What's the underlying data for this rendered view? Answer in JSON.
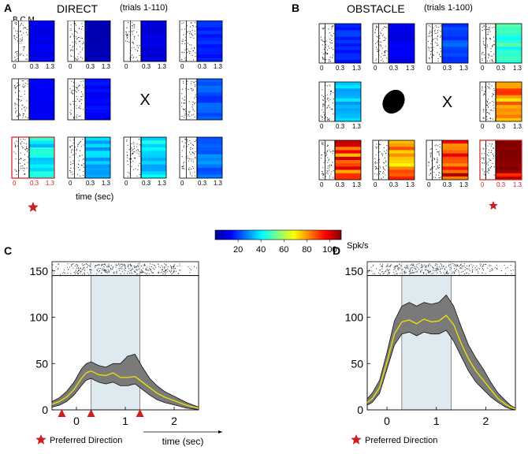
{
  "panel_a": {
    "letter": "A",
    "title": "DIRECT",
    "trials": "(trials 1-110)",
    "bcm": "B C M",
    "cells": [
      {
        "mean": 12,
        "missing": false,
        "preferred": false
      },
      {
        "mean": 6,
        "missing": false,
        "preferred": false
      },
      {
        "mean": 10,
        "missing": false,
        "preferred": false
      },
      {
        "mean": 18,
        "missing": false,
        "preferred": false
      },
      {
        "mean": 14,
        "missing": false,
        "preferred": false
      },
      {
        "mean": 14,
        "missing": false,
        "preferred": false
      },
      {
        "mean": 0,
        "missing": true,
        "preferred": false
      },
      {
        "mean": 22,
        "missing": false,
        "preferred": false
      },
      {
        "mean": 40,
        "missing": false,
        "preferred": true
      },
      {
        "mean": 35,
        "missing": false,
        "preferred": false
      },
      {
        "mean": 38,
        "missing": false,
        "preferred": false
      },
      {
        "mean": 26,
        "missing": false,
        "preferred": false
      }
    ],
    "tick_left": "0",
    "tick_mid": "0.3",
    "tick_right": "1.3",
    "missing_mark": "X",
    "xlabel": "time (sec)"
  },
  "panel_b": {
    "letter": "B",
    "title": "OBSTACLE",
    "trials": "(trials 1-100)",
    "cells": [
      {
        "mean": 18,
        "missing": false,
        "preferred": false
      },
      {
        "mean": 12,
        "missing": false,
        "preferred": false
      },
      {
        "mean": 22,
        "missing": false,
        "preferred": false
      },
      {
        "mean": 45,
        "missing": false,
        "preferred": false
      },
      {
        "mean": 34,
        "missing": false,
        "preferred": false
      },
      {
        "mean": 0,
        "missing": true,
        "obstacle": true,
        "preferred": false
      },
      {
        "mean": 0,
        "missing": true,
        "preferred": false
      },
      {
        "mean": 78,
        "missing": false,
        "preferred": false
      },
      {
        "mean": 88,
        "missing": false,
        "preferred": false
      },
      {
        "mean": 84,
        "missing": false,
        "preferred": false
      },
      {
        "mean": 90,
        "missing": false,
        "preferred": false
      },
      {
        "mean": 108,
        "missing": false,
        "preferred": true
      }
    ],
    "tick_left": "0",
    "tick_mid": "0.3",
    "tick_right": "1.3",
    "missing_mark": "X"
  },
  "colorbar": {
    "ticks": [
      "20",
      "40",
      "60",
      "80",
      "100"
    ],
    "tick_values": [
      20,
      40,
      60,
      80,
      100
    ],
    "range": [
      0,
      110
    ],
    "unit": "Spk/s"
  },
  "chart_data": [
    {
      "type": "line",
      "panel": "C",
      "xlabel": "time (sec)",
      "ylabel": "",
      "xlim": [
        -0.5,
        2.5
      ],
      "ylim": [
        0,
        160
      ],
      "xticks": [
        0,
        1,
        2
      ],
      "yticks": [
        0,
        50,
        100,
        150
      ],
      "shaded_window": [
        0.3,
        1.3
      ],
      "event_markers": [
        -0.3,
        0.3,
        1.3
      ],
      "series": [
        {
          "name": "mean",
          "x": [
            -0.5,
            -0.35,
            -0.2,
            -0.05,
            0.1,
            0.2,
            0.3,
            0.45,
            0.6,
            0.75,
            0.9,
            1.05,
            1.2,
            1.35,
            1.5,
            1.65,
            1.8,
            1.95,
            2.1,
            2.25,
            2.4,
            2.5
          ],
          "y": [
            6,
            9,
            14,
            22,
            34,
            40,
            42,
            38,
            37,
            40,
            35,
            35,
            36,
            30,
            24,
            18,
            14,
            11,
            8,
            5,
            3,
            2
          ],
          "upper": [
            9,
            13,
            20,
            30,
            44,
            50,
            52,
            48,
            46,
            50,
            50,
            58,
            60,
            46,
            34,
            26,
            20,
            16,
            12,
            8,
            5,
            3
          ],
          "lower": [
            3,
            5,
            9,
            16,
            26,
            32,
            34,
            30,
            28,
            30,
            26,
            26,
            28,
            22,
            16,
            11,
            8,
            6,
            4,
            2,
            1,
            0
          ]
        }
      ],
      "legend": "Preferred Direction"
    },
    {
      "type": "line",
      "panel": "D",
      "xlabel": "",
      "ylabel": "",
      "xlim": [
        -0.4,
        2.6
      ],
      "ylim": [
        0,
        160
      ],
      "xticks": [
        0,
        1,
        2
      ],
      "yticks": [
        0,
        50,
        100,
        150
      ],
      "shaded_window": [
        0.3,
        1.3
      ],
      "series": [
        {
          "name": "mean",
          "x": [
            -0.4,
            -0.3,
            -0.15,
            0,
            0.15,
            0.3,
            0.45,
            0.6,
            0.75,
            0.9,
            1.05,
            1.2,
            1.35,
            1.5,
            1.65,
            1.8,
            1.95,
            2.1,
            2.25,
            2.4,
            2.5,
            2.6
          ],
          "y": [
            8,
            12,
            24,
            52,
            82,
            95,
            97,
            93,
            98,
            95,
            96,
            102,
            92,
            72,
            55,
            42,
            32,
            22,
            12,
            6,
            3,
            1
          ],
          "upper": [
            12,
            18,
            32,
            62,
            96,
            112,
            116,
            112,
            116,
            114,
            116,
            124,
            112,
            90,
            70,
            56,
            44,
            30,
            18,
            10,
            5,
            2
          ],
          "lower": [
            5,
            8,
            18,
            44,
            70,
            82,
            84,
            80,
            84,
            82,
            82,
            86,
            74,
            58,
            42,
            30,
            22,
            14,
            8,
            3,
            1,
            0
          ]
        }
      ],
      "legend": "Preferred Direction"
    }
  ],
  "labels": {
    "panel_c_letter": "C",
    "panel_d_letter": "D"
  },
  "colors": {
    "accent_red": "#cc1f1f",
    "band_gray": "#7a7a7a",
    "mean_yellow": "#f2e200",
    "window_blue": "#dfeaf0"
  }
}
